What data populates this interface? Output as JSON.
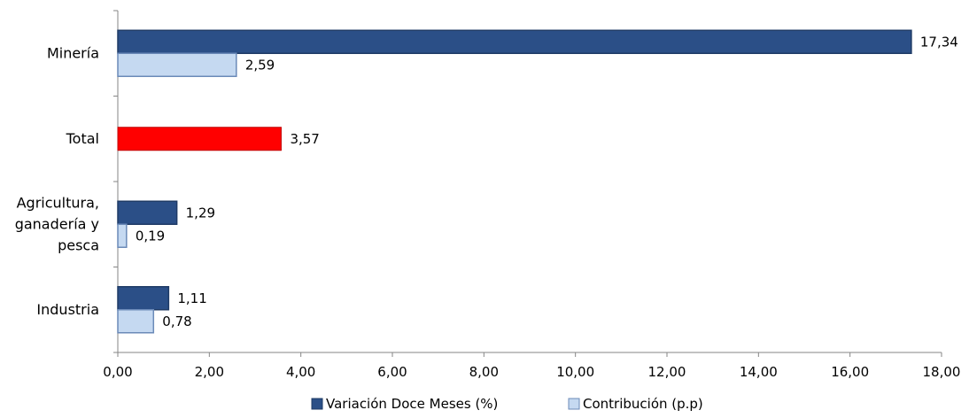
{
  "chart_data": {
    "type": "bar",
    "orientation": "horizontal",
    "categories": [
      [
        "Minería"
      ],
      [
        "Total"
      ],
      [
        "Agricultura,",
        "ganadería y",
        "pesca"
      ],
      [
        "Industria"
      ]
    ],
    "series": [
      {
        "name": "Variación Doce Meses (%)",
        "color": "#2b4f87",
        "values": [
          17.34,
          null,
          1.29,
          1.11
        ],
        "labels": [
          "17,34",
          "",
          "1,29",
          "1,11"
        ]
      },
      {
        "name": "Contribución (p.p)",
        "color": "#c5d9f1",
        "values": [
          2.59,
          null,
          0.19,
          0.78
        ],
        "labels": [
          "2,59",
          "",
          "0,19",
          "0,78"
        ]
      }
    ],
    "total_bar": {
      "category_index": 1,
      "value": 3.57,
      "label": "3,57",
      "color": "#ff0000"
    },
    "xlim": [
      0,
      18
    ],
    "xticks": [
      0,
      2,
      4,
      6,
      8,
      10,
      12,
      14,
      16,
      18
    ],
    "xtick_labels": [
      "0,00",
      "2,00",
      "4,00",
      "6,00",
      "8,00",
      "10,00",
      "12,00",
      "14,00",
      "16,00",
      "18,00"
    ],
    "grid": false,
    "legend_position": "bottom"
  }
}
